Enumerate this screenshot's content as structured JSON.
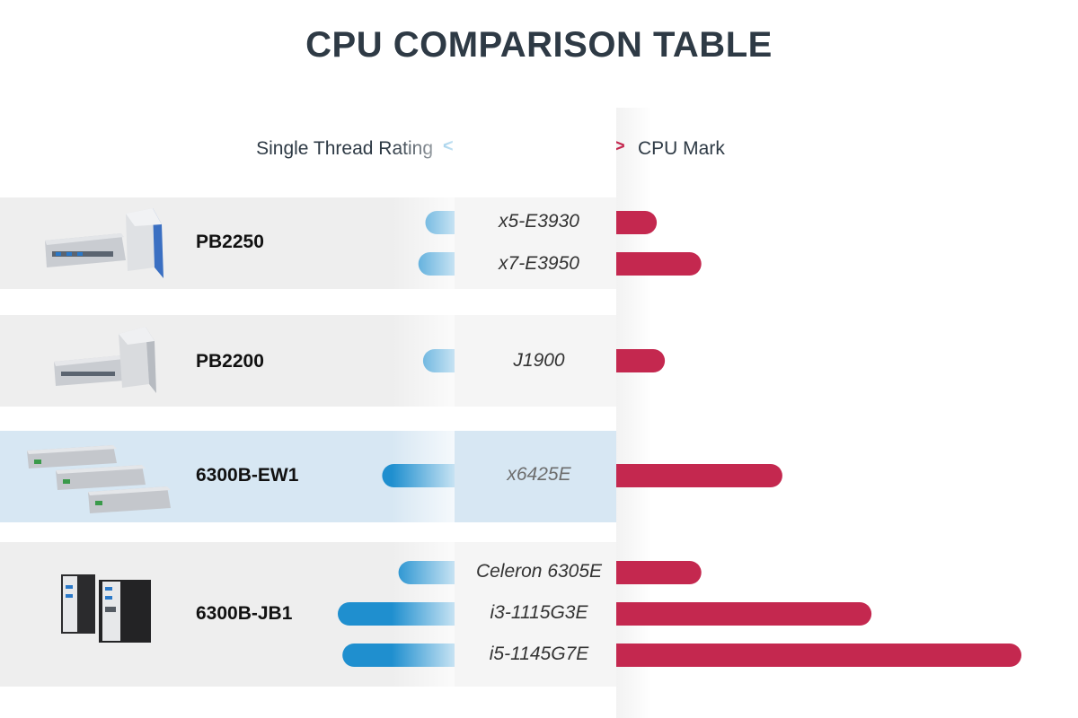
{
  "title": "CPU COMPARISON TABLE",
  "legend": {
    "left_label": "Single Thread Rating",
    "left_marker": "<",
    "right_label": "CPU Mark",
    "right_marker": ">"
  },
  "colors": {
    "single_thread": "#1f8fcf",
    "cpu_mark": "#c4284f",
    "highlight_row": "#d7e7f3"
  },
  "products": [
    {
      "name": "PB2250",
      "image": "industrial-pc-pb2250-icon",
      "highlighted": false,
      "cpus": [
        "x5-E3930",
        "x7-E3950"
      ]
    },
    {
      "name": "PB2200",
      "image": "industrial-pc-pb2200-icon",
      "highlighted": false,
      "cpus": [
        "J1900"
      ]
    },
    {
      "name": "6300B-EW1",
      "image": "industrial-pc-6300b-ew1-icon",
      "highlighted": true,
      "cpus": [
        "x6425E"
      ]
    },
    {
      "name": "6300B-JB1",
      "image": "industrial-pc-6300b-jb1-icon",
      "highlighted": false,
      "cpus": [
        "Celeron 6305E",
        "i3-1115G3E",
        "i5-1145G7E"
      ]
    }
  ],
  "chart_data": {
    "type": "bar",
    "orientation": "diverging-horizontal",
    "title": "CPU COMPARISON TABLE",
    "categories": [
      "x5-E3930",
      "x7-E3950",
      "J1900",
      "x6425E",
      "Celeron 6305E",
      "i3-1115G3E",
      "i5-1145G7E"
    ],
    "series": [
      {
        "name": "Single Thread Rating",
        "direction": "left",
        "color": "#1f8fcf",
        "values": [
          0.25,
          0.31,
          0.27,
          0.62,
          0.48,
          1.0,
          0.96
        ]
      },
      {
        "name": "CPU Mark",
        "direction": "right",
        "color": "#c4284f",
        "values": [
          0.1,
          0.21,
          0.12,
          0.41,
          0.21,
          0.63,
          1.0
        ]
      }
    ],
    "value_scale": "relative",
    "axis_labels_shown": false,
    "grid": false
  }
}
